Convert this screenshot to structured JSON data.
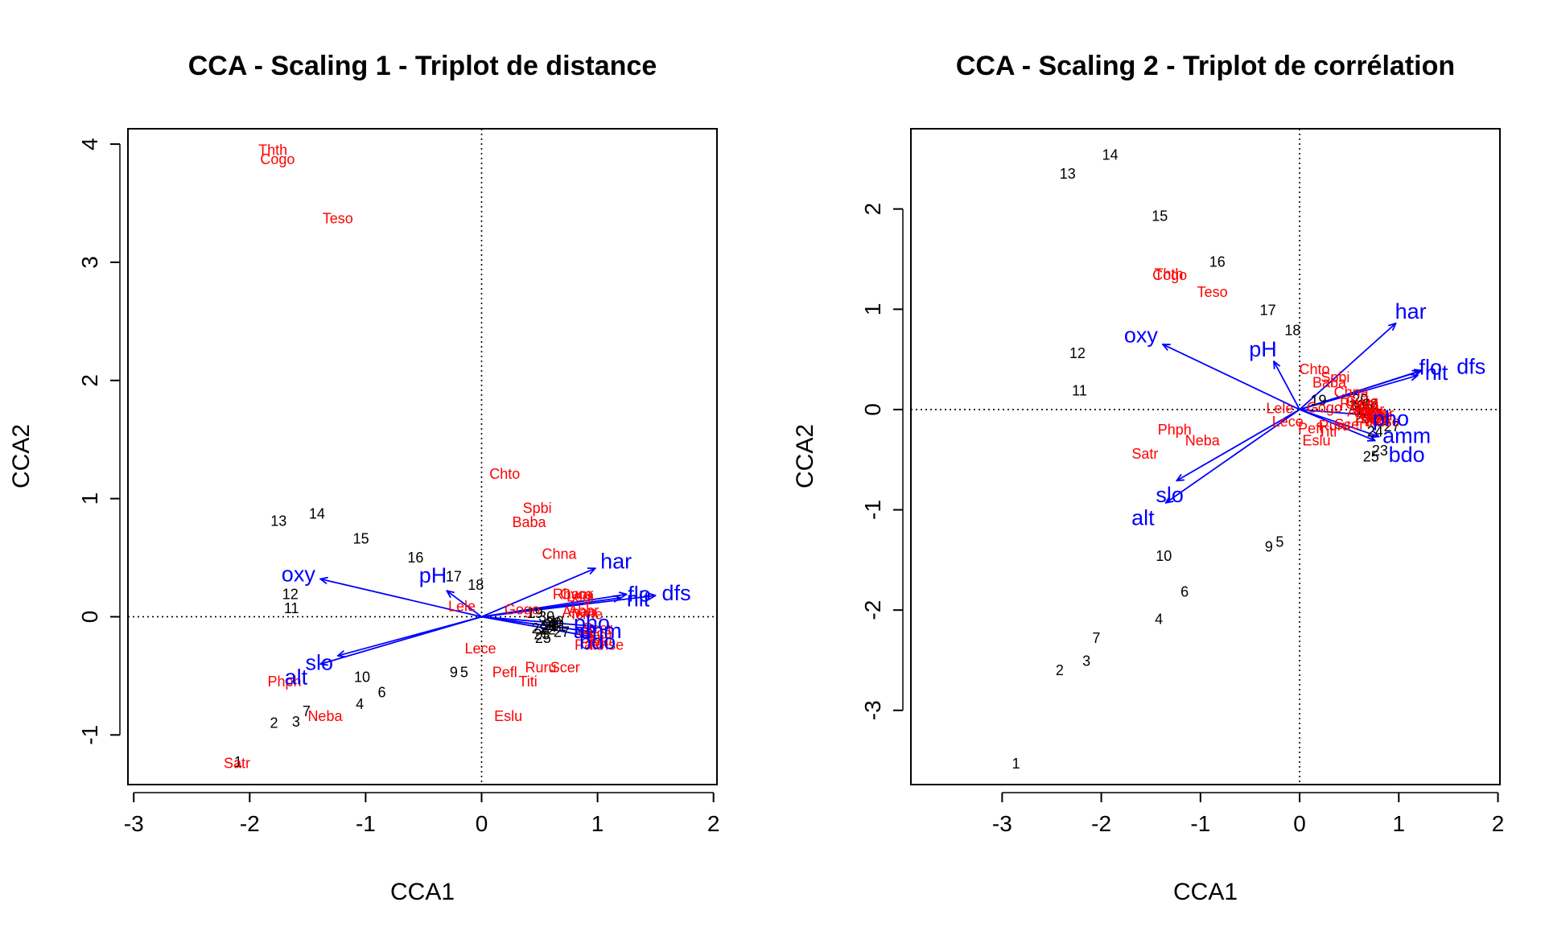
{
  "chart_data": [
    {
      "type": "scatter",
      "title": "CCA - Scaling 1 - Triplot de distance",
      "xlabel": "CCA1",
      "ylabel": "CCA2",
      "xlim": [
        -3.05,
        2.03
      ],
      "ylim": [
        -1.42,
        4.13
      ],
      "xticks": [
        -3,
        -2,
        -1,
        0,
        1,
        2
      ],
      "yticks": [
        -1,
        0,
        1,
        2,
        3,
        4
      ],
      "grid": false,
      "zero_lines": true,
      "colors": {
        "sites": "#000000",
        "species": "#ff0000",
        "env": "#0000ff"
      },
      "sites": [
        {
          "label": "1",
          "x": -2.1,
          "y": -1.23
        },
        {
          "label": "2",
          "x": -1.79,
          "y": -0.9
        },
        {
          "label": "3",
          "x": -1.6,
          "y": -0.89
        },
        {
          "label": "4",
          "x": -1.05,
          "y": -0.74
        },
        {
          "label": "5",
          "x": -0.15,
          "y": -0.47
        },
        {
          "label": "6",
          "x": -0.86,
          "y": -0.64
        },
        {
          "label": "7",
          "x": -1.51,
          "y": -0.8
        },
        {
          "label": "9",
          "x": -0.24,
          "y": -0.47
        },
        {
          "label": "10",
          "x": -1.03,
          "y": -0.51
        },
        {
          "label": "11",
          "x": -1.64,
          "y": 0.07
        },
        {
          "label": "12",
          "x": -1.65,
          "y": 0.19
        },
        {
          "label": "13",
          "x": -1.75,
          "y": 0.81
        },
        {
          "label": "14",
          "x": -1.42,
          "y": 0.87
        },
        {
          "label": "15",
          "x": -1.04,
          "y": 0.66
        },
        {
          "label": "16",
          "x": -0.57,
          "y": 0.5
        },
        {
          "label": "17",
          "x": -0.24,
          "y": 0.34
        },
        {
          "label": "18",
          "x": -0.05,
          "y": 0.27
        },
        {
          "label": "19",
          "x": 0.46,
          "y": 0.03
        },
        {
          "label": "20",
          "x": 0.62,
          "y": -0.05
        },
        {
          "label": "21",
          "x": 0.66,
          "y": -0.08
        },
        {
          "label": "22",
          "x": 0.57,
          "y": -0.11
        },
        {
          "label": "23",
          "x": 0.52,
          "y": -0.15
        },
        {
          "label": "24",
          "x": 0.58,
          "y": -0.09
        },
        {
          "label": "25",
          "x": 0.53,
          "y": -0.18
        },
        {
          "label": "26",
          "x": 0.6,
          "y": -0.07
        },
        {
          "label": "27",
          "x": 0.69,
          "y": -0.13
        },
        {
          "label": "28",
          "x": 0.64,
          "y": -0.04
        },
        {
          "label": "29",
          "x": 0.5,
          "y": -0.1
        },
        {
          "label": "30",
          "x": 0.56,
          "y": 0.0
        }
      ],
      "species": [
        {
          "label": "Cogo",
          "x": -1.76,
          "y": 3.87
        },
        {
          "label": "Thth",
          "x": -1.8,
          "y": 3.95
        },
        {
          "label": "Teso",
          "x": -1.24,
          "y": 3.37
        },
        {
          "label": "Phph",
          "x": -1.7,
          "y": -0.55
        },
        {
          "label": "Neba",
          "x": -1.35,
          "y": -0.84
        },
        {
          "label": "Satr",
          "x": -2.11,
          "y": -1.24
        },
        {
          "label": "Lele",
          "x": -0.17,
          "y": 0.09
        },
        {
          "label": "Lece",
          "x": -0.01,
          "y": -0.27
        },
        {
          "label": "Chto",
          "x": 0.2,
          "y": 1.21
        },
        {
          "label": "Spbi",
          "x": 0.48,
          "y": 0.92
        },
        {
          "label": "Baba",
          "x": 0.41,
          "y": 0.8
        },
        {
          "label": "Chna",
          "x": 0.67,
          "y": 0.53
        },
        {
          "label": "Pefl",
          "x": 0.2,
          "y": -0.47
        },
        {
          "label": "Ruru",
          "x": 0.51,
          "y": -0.43
        },
        {
          "label": "Titi",
          "x": 0.4,
          "y": -0.55
        },
        {
          "label": "Scer",
          "x": 0.72,
          "y": -0.43
        },
        {
          "label": "Eslu",
          "x": 0.23,
          "y": -0.84
        },
        {
          "label": "Gogo",
          "x": 0.35,
          "y": 0.06
        },
        {
          "label": "Rham",
          "x": 0.78,
          "y": 0.19
        },
        {
          "label": "Legi",
          "x": 0.85,
          "y": 0.17
        },
        {
          "label": "Cyca",
          "x": 0.82,
          "y": 0.19
        },
        {
          "label": "Abbr",
          "x": 0.88,
          "y": 0.05
        },
        {
          "label": "Icme",
          "x": 0.91,
          "y": 0.02
        },
        {
          "label": "Anan",
          "x": 0.84,
          "y": 0.04
        },
        {
          "label": "Blbj",
          "x": 0.95,
          "y": -0.18
        },
        {
          "label": "Alal",
          "x": 1.02,
          "y": -0.2
        },
        {
          "label": "Gyce",
          "x": 0.98,
          "y": -0.14
        },
        {
          "label": "Pato",
          "x": 0.93,
          "y": -0.24
        },
        {
          "label": "Scer2",
          "x": 1.0,
          "y": -0.1
        },
        {
          "label": "Rhse",
          "x": 1.08,
          "y": -0.24
        }
      ],
      "env": [
        {
          "label": "har",
          "x": 0.98,
          "y": 0.41
        },
        {
          "label": "flo",
          "x": 1.25,
          "y": 0.19
        },
        {
          "label": "nit",
          "x": 1.2,
          "y": 0.16
        },
        {
          "label": "dfs",
          "x": 1.5,
          "y": 0.18
        },
        {
          "label": "pho",
          "x": 0.97,
          "y": -0.08
        },
        {
          "label": "amm",
          "x": 0.97,
          "y": -0.13
        },
        {
          "label": "bdo",
          "x": 0.96,
          "y": -0.17
        },
        {
          "label": "oxy",
          "x": -1.39,
          "y": 0.32
        },
        {
          "label": "pH",
          "x": -0.3,
          "y": 0.22
        },
        {
          "label": "slo",
          "x": -1.24,
          "y": -0.33
        },
        {
          "label": "alt",
          "x": -1.39,
          "y": -0.4
        }
      ],
      "env_label_pos": {
        "har": [
          1.16,
          0.47
        ],
        "flo": [
          1.36,
          0.19
        ],
        "nit": [
          1.35,
          0.15
        ],
        "dfs": [
          1.68,
          0.2
        ],
        "pho": [
          0.95,
          -0.05
        ],
        "amm": [
          1.0,
          -0.12
        ],
        "bdo": [
          1.0,
          -0.21
        ],
        "oxy": [
          -1.58,
          0.36
        ],
        "pH": [
          -0.42,
          0.35
        ],
        "slo": [
          -1.4,
          -0.39
        ],
        "alt": [
          -1.6,
          -0.51
        ]
      }
    },
    {
      "type": "scatter",
      "title": "CCA - Scaling 2 - Triplot de corrélation",
      "xlabel": "CCA1",
      "ylabel": "CCA2",
      "xlim": [
        -3.92,
        2.02
      ],
      "ylim": [
        -3.74,
        2.8
      ],
      "xticks": [
        -3,
        -2,
        -1,
        0,
        1,
        2
      ],
      "yticks": [
        -3,
        -2,
        -1,
        0,
        1,
        2
      ],
      "grid": false,
      "zero_lines": true,
      "colors": {
        "sites": "#000000",
        "species": "#ff0000",
        "env": "#0000ff"
      },
      "sites": [
        {
          "label": "1",
          "x": -2.86,
          "y": -3.53
        },
        {
          "label": "2",
          "x": -2.42,
          "y": -2.6
        },
        {
          "label": "3",
          "x": -2.15,
          "y": -2.51
        },
        {
          "label": "4",
          "x": -1.42,
          "y": -2.09
        },
        {
          "label": "5",
          "x": -0.2,
          "y": -1.32
        },
        {
          "label": "6",
          "x": -1.16,
          "y": -1.82
        },
        {
          "label": "7",
          "x": -2.05,
          "y": -2.28
        },
        {
          "label": "9",
          "x": -0.31,
          "y": -1.37
        },
        {
          "label": "10",
          "x": -1.37,
          "y": -1.46
        },
        {
          "label": "11",
          "x": -2.22,
          "y": 0.19
        },
        {
          "label": "12",
          "x": -2.24,
          "y": 0.56
        },
        {
          "label": "13",
          "x": -2.34,
          "y": 2.35
        },
        {
          "label": "14",
          "x": -1.91,
          "y": 2.54
        },
        {
          "label": "15",
          "x": -1.41,
          "y": 1.93
        },
        {
          "label": "16",
          "x": -0.83,
          "y": 1.47
        },
        {
          "label": "17",
          "x": -0.32,
          "y": 0.99
        },
        {
          "label": "18",
          "x": -0.07,
          "y": 0.79
        },
        {
          "label": "19",
          "x": 0.19,
          "y": 0.09
        },
        {
          "label": "20",
          "x": 0.61,
          "y": 0.1
        },
        {
          "label": "21",
          "x": 0.82,
          "y": -0.11
        },
        {
          "label": "22",
          "x": 0.76,
          "y": -0.05
        },
        {
          "label": "23",
          "x": 0.81,
          "y": -0.41
        },
        {
          "label": "24",
          "x": 0.76,
          "y": -0.22
        },
        {
          "label": "25",
          "x": 0.72,
          "y": -0.47
        },
        {
          "label": "26",
          "x": 0.66,
          "y": 0.0
        },
        {
          "label": "27",
          "x": 0.93,
          "y": -0.17
        },
        {
          "label": "28",
          "x": 0.71,
          "y": 0.05
        },
        {
          "label": "29",
          "x": 0.64,
          "y": -0.08
        },
        {
          "label": "30",
          "x": 0.58,
          "y": 0.04
        }
      ],
      "species": [
        {
          "label": "Cogo",
          "x": -1.31,
          "y": 1.34
        },
        {
          "label": "Thth",
          "x": -1.32,
          "y": 1.35
        },
        {
          "label": "Teso",
          "x": -0.88,
          "y": 1.17
        },
        {
          "label": "Phph",
          "x": -1.26,
          "y": -0.2
        },
        {
          "label": "Neba",
          "x": -0.98,
          "y": -0.31
        },
        {
          "label": "Satr",
          "x": -1.56,
          "y": -0.44
        },
        {
          "label": "Lele",
          "x": -0.2,
          "y": 0.01
        },
        {
          "label": "Lece",
          "x": -0.12,
          "y": -0.12
        },
        {
          "label": "Chto",
          "x": 0.15,
          "y": 0.4
        },
        {
          "label": "Spbi",
          "x": 0.36,
          "y": 0.32
        },
        {
          "label": "Baba",
          "x": 0.3,
          "y": 0.27
        },
        {
          "label": "Chna",
          "x": 0.52,
          "y": 0.17
        },
        {
          "label": "Pefl",
          "x": 0.11,
          "y": -0.19
        },
        {
          "label": "Ruru",
          "x": 0.35,
          "y": -0.16
        },
        {
          "label": "Titi",
          "x": 0.28,
          "y": -0.22
        },
        {
          "label": "Scer",
          "x": 0.5,
          "y": -0.15
        },
        {
          "label": "Eslu",
          "x": 0.17,
          "y": -0.31
        },
        {
          "label": "Gogo",
          "x": 0.25,
          "y": 0.02
        },
        {
          "label": "Rham",
          "x": 0.6,
          "y": 0.06
        },
        {
          "label": "Legi",
          "x": 0.66,
          "y": 0.05
        },
        {
          "label": "Cyca",
          "x": 0.63,
          "y": 0.08
        },
        {
          "label": "Abbr",
          "x": 0.7,
          "y": 0.0
        },
        {
          "label": "Icme",
          "x": 0.72,
          "y": -0.03
        },
        {
          "label": "Anan",
          "x": 0.65,
          "y": -0.02
        },
        {
          "label": "Blbj",
          "x": 0.74,
          "y": -0.09
        },
        {
          "label": "Alal",
          "x": 0.79,
          "y": -0.1
        },
        {
          "label": "Gyce",
          "x": 0.77,
          "y": -0.06
        },
        {
          "label": "Pato",
          "x": 0.71,
          "y": -0.12
        },
        {
          "label": "Scer2",
          "x": 0.8,
          "y": -0.04
        },
        {
          "label": "Rhse",
          "x": 0.84,
          "y": -0.12
        }
      ],
      "env": [
        {
          "label": "har",
          "x": 0.97,
          "y": 0.86
        },
        {
          "label": "flo",
          "x": 1.23,
          "y": 0.39
        },
        {
          "label": "nit",
          "x": 1.19,
          "y": 0.34
        },
        {
          "label": "dfs",
          "x": 1.21,
          "y": 0.38
        },
        {
          "label": "pho",
          "x": 0.86,
          "y": -0.07
        },
        {
          "label": "amm",
          "x": 0.8,
          "y": -0.27
        },
        {
          "label": "bdo",
          "x": 0.76,
          "y": -0.31
        },
        {
          "label": "oxy",
          "x": -1.38,
          "y": 0.65
        },
        {
          "label": "pH",
          "x": -0.26,
          "y": 0.48
        },
        {
          "label": "slo",
          "x": -1.24,
          "y": -0.71
        },
        {
          "label": "alt",
          "x": -1.35,
          "y": -0.93
        }
      ],
      "env_label_pos": {
        "har": [
          1.12,
          0.98
        ],
        "flo": [
          1.32,
          0.42
        ],
        "nit": [
          1.38,
          0.37
        ],
        "dfs": [
          1.73,
          0.43
        ],
        "pho": [
          0.92,
          -0.09
        ],
        "amm": [
          1.08,
          -0.26
        ],
        "bdo": [
          1.08,
          -0.45
        ],
        "oxy": [
          -1.6,
          0.74
        ],
        "pH": [
          -0.37,
          0.6
        ],
        "slo": [
          -1.31,
          -0.85
        ],
        "alt": [
          -1.58,
          -1.08
        ]
      }
    }
  ]
}
